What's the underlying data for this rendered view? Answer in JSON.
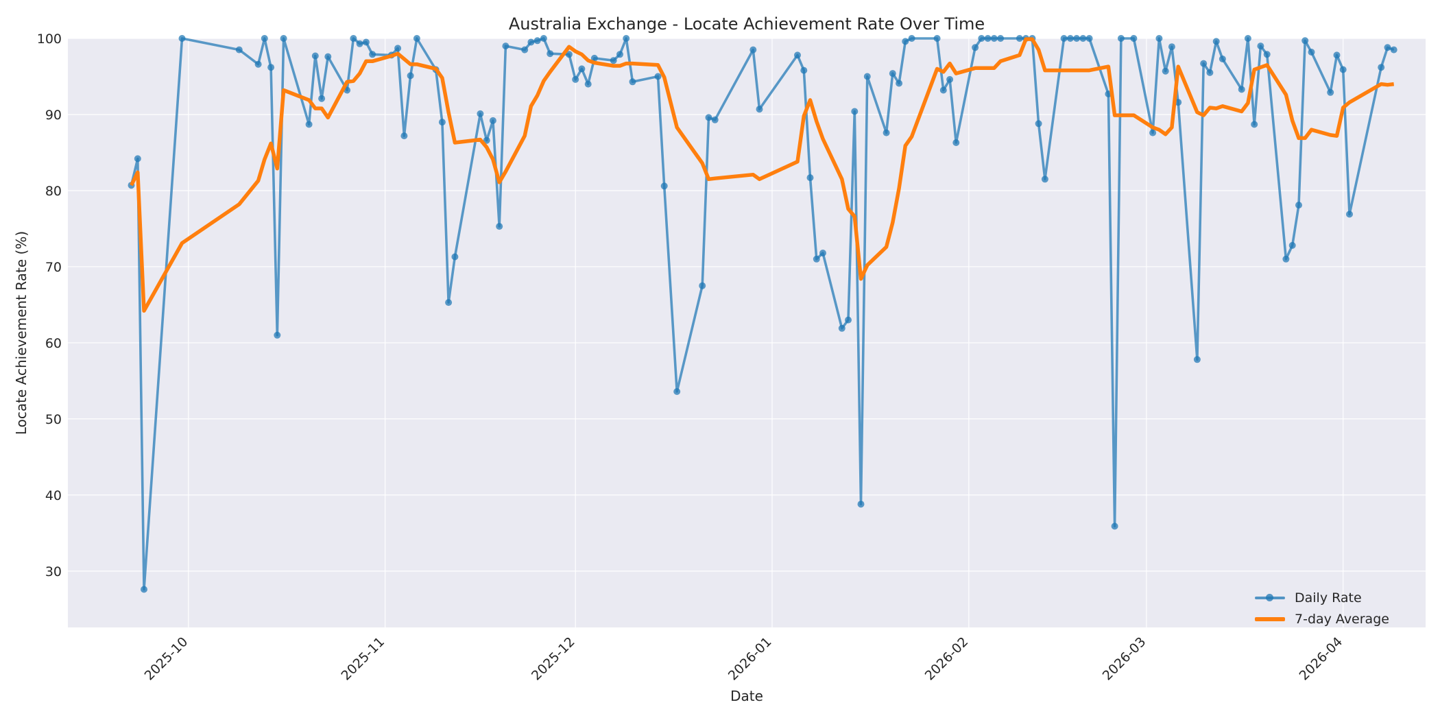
{
  "chart_data": {
    "type": "line",
    "title": "Australia Exchange - Locate Achievement Rate Over Time",
    "xlabel": "Date",
    "ylabel": "Locate Achievement Rate (%)",
    "xlim": [
      "2025-09-12",
      "2026-04-14"
    ],
    "ylim": [
      22.6,
      100
    ],
    "x_ticks": [
      "2025-10",
      "2025-11",
      "2025-12",
      "2026-01",
      "2026-02",
      "2026-03",
      "2026-04"
    ],
    "y_ticks": [
      30,
      40,
      50,
      60,
      70,
      80,
      90,
      100
    ],
    "grid": true,
    "legend_position": "lower-right",
    "series": [
      {
        "name": "Daily Rate",
        "color": "#1f77b4",
        "marker": "circle",
        "points": [
          [
            "2025-09-22",
            80.7
          ],
          [
            "2025-09-23",
            84.2
          ],
          [
            "2025-09-24",
            27.6
          ],
          [
            "2025-09-30",
            100.0
          ],
          [
            "2025-10-09",
            98.5
          ],
          [
            "2025-10-12",
            96.6
          ],
          [
            "2025-10-13",
            100.0
          ],
          [
            "2025-10-14",
            96.2
          ],
          [
            "2025-10-15",
            61.0
          ],
          [
            "2025-10-16",
            100.0
          ],
          [
            "2025-10-20",
            88.7
          ],
          [
            "2025-10-21",
            97.7
          ],
          [
            "2025-10-22",
            92.1
          ],
          [
            "2025-10-23",
            97.6
          ],
          [
            "2025-10-26",
            93.2
          ],
          [
            "2025-10-27",
            100.0
          ],
          [
            "2025-10-28",
            99.3
          ],
          [
            "2025-10-29",
            99.5
          ],
          [
            "2025-10-30",
            97.9
          ],
          [
            "2025-11-02",
            97.8
          ],
          [
            "2025-11-03",
            98.7
          ],
          [
            "2025-11-04",
            87.2
          ],
          [
            "2025-11-05",
            95.1
          ],
          [
            "2025-11-06",
            100.0
          ],
          [
            "2025-11-09",
            95.9
          ],
          [
            "2025-11-10",
            89.0
          ],
          [
            "2025-11-11",
            65.3
          ],
          [
            "2025-11-12",
            71.3
          ],
          [
            "2025-11-16",
            90.1
          ],
          [
            "2025-11-17",
            86.6
          ],
          [
            "2025-11-18",
            89.2
          ],
          [
            "2025-11-19",
            75.3
          ],
          [
            "2025-11-20",
            99.0
          ],
          [
            "2025-11-23",
            98.5
          ],
          [
            "2025-11-24",
            99.5
          ],
          [
            "2025-11-25",
            99.7
          ],
          [
            "2025-11-26",
            100.0
          ],
          [
            "2025-11-27",
            98.0
          ],
          [
            "2025-11-30",
            97.9
          ],
          [
            "2025-12-01",
            94.6
          ],
          [
            "2025-12-02",
            96.0
          ],
          [
            "2025-12-03",
            94.0
          ],
          [
            "2025-12-04",
            97.4
          ],
          [
            "2025-12-07",
            97.1
          ],
          [
            "2025-12-08",
            97.9
          ],
          [
            "2025-12-09",
            100.0
          ],
          [
            "2025-12-10",
            94.3
          ],
          [
            "2025-12-14",
            95.0
          ],
          [
            "2025-12-15",
            80.6
          ],
          [
            "2025-12-17",
            53.6
          ],
          [
            "2025-12-21",
            67.5
          ],
          [
            "2025-12-22",
            89.6
          ],
          [
            "2025-12-23",
            89.3
          ],
          [
            "2025-12-29",
            98.5
          ],
          [
            "2025-12-30",
            90.7
          ],
          [
            "2026-01-05",
            97.8
          ],
          [
            "2026-01-06",
            95.8
          ],
          [
            "2026-01-07",
            81.7
          ],
          [
            "2026-01-08",
            71.0
          ],
          [
            "2026-01-09",
            71.8
          ],
          [
            "2026-01-12",
            61.9
          ],
          [
            "2026-01-13",
            63.0
          ],
          [
            "2026-01-14",
            90.4
          ],
          [
            "2026-01-15",
            38.8
          ],
          [
            "2026-01-16",
            95.0
          ],
          [
            "2026-01-19",
            87.6
          ],
          [
            "2026-01-20",
            95.4
          ],
          [
            "2026-01-21",
            94.1
          ],
          [
            "2026-01-22",
            99.6
          ],
          [
            "2026-01-23",
            100.0
          ],
          [
            "2026-01-27",
            100.0
          ],
          [
            "2026-01-28",
            93.2
          ],
          [
            "2026-01-29",
            94.6
          ],
          [
            "2026-01-30",
            86.3
          ],
          [
            "2026-02-02",
            98.8
          ],
          [
            "2026-02-03",
            100.0
          ],
          [
            "2026-02-04",
            100.0
          ],
          [
            "2026-02-05",
            100.0
          ],
          [
            "2026-02-06",
            100.0
          ],
          [
            "2026-02-09",
            100.0
          ],
          [
            "2026-02-10",
            100.0
          ],
          [
            "2026-02-11",
            100.0
          ],
          [
            "2026-02-12",
            88.8
          ],
          [
            "2026-02-13",
            81.5
          ],
          [
            "2026-02-16",
            100.0
          ],
          [
            "2026-02-17",
            100.0
          ],
          [
            "2026-02-18",
            100.0
          ],
          [
            "2026-02-19",
            100.0
          ],
          [
            "2026-02-20",
            100.0
          ],
          [
            "2026-02-23",
            92.7
          ],
          [
            "2026-02-24",
            35.9
          ],
          [
            "2026-02-25",
            100.0
          ],
          [
            "2026-02-27",
            100.0
          ],
          [
            "2026-03-02",
            87.6
          ],
          [
            "2026-03-03",
            100.0
          ],
          [
            "2026-03-04",
            95.7
          ],
          [
            "2026-03-05",
            98.9
          ],
          [
            "2026-03-06",
            91.6
          ],
          [
            "2026-03-09",
            57.8
          ],
          [
            "2026-03-10",
            96.7
          ],
          [
            "2026-03-11",
            95.5
          ],
          [
            "2026-03-12",
            99.6
          ],
          [
            "2026-03-13",
            97.3
          ],
          [
            "2026-03-16",
            93.3
          ],
          [
            "2026-03-17",
            100.0
          ],
          [
            "2026-03-18",
            88.7
          ],
          [
            "2026-03-19",
            99.0
          ],
          [
            "2026-03-20",
            97.9
          ],
          [
            "2026-03-23",
            71.0
          ],
          [
            "2026-03-24",
            72.8
          ],
          [
            "2026-03-25",
            78.1
          ],
          [
            "2026-03-26",
            99.7
          ],
          [
            "2026-03-27",
            98.2
          ],
          [
            "2026-03-30",
            92.9
          ],
          [
            "2026-03-31",
            97.8
          ],
          [
            "2026-04-01",
            95.9
          ],
          [
            "2026-04-02",
            76.9
          ],
          [
            "2026-04-07",
            96.2
          ],
          [
            "2026-04-08",
            98.8
          ],
          [
            "2026-04-09",
            98.5
          ]
        ]
      },
      {
        "name": "7-day Average",
        "color": "#ff7f0e",
        "marker": "none",
        "points": [
          [
            "2025-09-22",
            80.7
          ],
          [
            "2025-09-23",
            82.4
          ],
          [
            "2025-09-24",
            64.2
          ],
          [
            "2025-09-30",
            73.1
          ],
          [
            "2025-10-09",
            78.2
          ],
          [
            "2025-10-12",
            81.3
          ],
          [
            "2025-10-13",
            84.1
          ],
          [
            "2025-10-14",
            86.2
          ],
          [
            "2025-10-15",
            82.9
          ],
          [
            "2025-10-16",
            93.2
          ],
          [
            "2025-10-20",
            91.9
          ],
          [
            "2025-10-21",
            90.8
          ],
          [
            "2025-10-22",
            90.8
          ],
          [
            "2025-10-23",
            89.6
          ],
          [
            "2025-10-26",
            94.3
          ],
          [
            "2025-10-27",
            94.4
          ],
          [
            "2025-10-28",
            95.4
          ],
          [
            "2025-10-29",
            97.0
          ],
          [
            "2025-10-30",
            97.0
          ],
          [
            "2025-11-02",
            97.7
          ],
          [
            "2025-11-03",
            98.0
          ],
          [
            "2025-11-04",
            97.3
          ],
          [
            "2025-11-05",
            96.6
          ],
          [
            "2025-11-06",
            96.6
          ],
          [
            "2025-11-09",
            96.0
          ],
          [
            "2025-11-10",
            94.8
          ],
          [
            "2025-11-11",
            90.3
          ],
          [
            "2025-11-12",
            86.3
          ],
          [
            "2025-11-16",
            86.7
          ],
          [
            "2025-11-17",
            85.7
          ],
          [
            "2025-11-18",
            84.1
          ],
          [
            "2025-11-19",
            81.1
          ],
          [
            "2025-11-20",
            82.5
          ],
          [
            "2025-11-23",
            87.2
          ],
          [
            "2025-11-24",
            91.1
          ],
          [
            "2025-11-25",
            92.5
          ],
          [
            "2025-11-26",
            94.4
          ],
          [
            "2025-11-27",
            95.6
          ],
          [
            "2025-11-30",
            98.9
          ],
          [
            "2025-12-01",
            98.3
          ],
          [
            "2025-12-02",
            97.9
          ],
          [
            "2025-12-03",
            97.1
          ],
          [
            "2025-12-04",
            96.8
          ],
          [
            "2025-12-07",
            96.4
          ],
          [
            "2025-12-08",
            96.4
          ],
          [
            "2025-12-09",
            96.7
          ],
          [
            "2025-12-10",
            96.7
          ],
          [
            "2025-12-14",
            96.5
          ],
          [
            "2025-12-15",
            94.9
          ],
          [
            "2025-12-17",
            88.3
          ],
          [
            "2025-12-21",
            83.6
          ],
          [
            "2025-12-22",
            81.5
          ],
          [
            "2025-12-23",
            81.6
          ],
          [
            "2025-12-29",
            82.1
          ],
          [
            "2025-12-30",
            81.5
          ],
          [
            "2026-01-05",
            83.8
          ],
          [
            "2026-01-06",
            89.8
          ],
          [
            "2026-01-07",
            91.9
          ],
          [
            "2026-01-08",
            89.1
          ],
          [
            "2026-01-09",
            86.8
          ],
          [
            "2026-01-12",
            81.5
          ],
          [
            "2026-01-13",
            77.6
          ],
          [
            "2026-01-14",
            76.6
          ],
          [
            "2026-01-15",
            68.4
          ],
          [
            "2026-01-16",
            70.2
          ],
          [
            "2026-01-19",
            72.6
          ],
          [
            "2026-01-20",
            75.8
          ],
          [
            "2026-01-21",
            80.3
          ],
          [
            "2026-01-22",
            85.9
          ],
          [
            "2026-01-23",
            87.1
          ],
          [
            "2026-01-27",
            96.0
          ],
          [
            "2026-01-28",
            95.6
          ],
          [
            "2026-01-29",
            96.7
          ],
          [
            "2026-01-30",
            95.4
          ],
          [
            "2026-02-02",
            96.1
          ],
          [
            "2026-02-03",
            96.1
          ],
          [
            "2026-02-04",
            96.1
          ],
          [
            "2026-02-05",
            96.1
          ],
          [
            "2026-02-06",
            97.0
          ],
          [
            "2026-02-09",
            97.8
          ],
          [
            "2026-02-10",
            99.9
          ],
          [
            "2026-02-11",
            99.9
          ],
          [
            "2026-02-12",
            98.5
          ],
          [
            "2026-02-13",
            95.8
          ],
          [
            "2026-02-16",
            95.8
          ],
          [
            "2026-02-17",
            95.8
          ],
          [
            "2026-02-18",
            95.8
          ],
          [
            "2026-02-19",
            95.8
          ],
          [
            "2026-02-20",
            95.8
          ],
          [
            "2026-02-23",
            96.3
          ],
          [
            "2026-02-24",
            89.9
          ],
          [
            "2026-02-25",
            89.9
          ],
          [
            "2026-02-27",
            89.9
          ],
          [
            "2026-03-02",
            88.3
          ],
          [
            "2026-03-03",
            88.0
          ],
          [
            "2026-03-04",
            87.4
          ],
          [
            "2026-03-05",
            88.3
          ],
          [
            "2026-03-06",
            96.3
          ],
          [
            "2026-03-09",
            90.3
          ],
          [
            "2026-03-10",
            89.9
          ],
          [
            "2026-03-11",
            90.9
          ],
          [
            "2026-03-12",
            90.8
          ],
          [
            "2026-03-13",
            91.1
          ],
          [
            "2026-03-16",
            90.4
          ],
          [
            "2026-03-17",
            91.5
          ],
          [
            "2026-03-18",
            95.9
          ],
          [
            "2026-03-19",
            96.2
          ],
          [
            "2026-03-20",
            96.5
          ],
          [
            "2026-03-23",
            92.6
          ],
          [
            "2026-03-24",
            89.2
          ],
          [
            "2026-03-25",
            86.9
          ],
          [
            "2026-03-26",
            86.9
          ],
          [
            "2026-03-27",
            88.0
          ],
          [
            "2026-03-30",
            87.3
          ],
          [
            "2026-03-31",
            87.2
          ],
          [
            "2026-04-01",
            90.9
          ],
          [
            "2026-04-02",
            91.6
          ],
          [
            "2026-04-07",
            94.0
          ],
          [
            "2026-04-08",
            93.9
          ],
          [
            "2026-04-09",
            94.0
          ]
        ]
      }
    ]
  }
}
